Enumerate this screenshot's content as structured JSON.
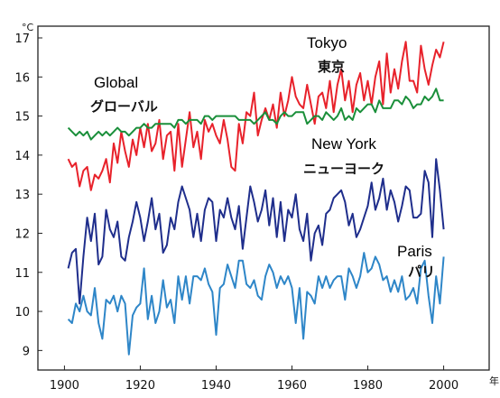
{
  "chart_data": {
    "type": "line",
    "ylabel": "°C",
    "xunit": "年",
    "xlim": [
      1893,
      2012
    ],
    "ylim": [
      8.5,
      17.3
    ],
    "xticks": [
      "1900",
      "1920",
      "1940",
      "1960",
      "1980",
      "2000"
    ],
    "yticks": [
      "9",
      "10",
      "11",
      "12",
      "13",
      "14",
      "15",
      "16",
      "17"
    ],
    "x": [
      1901,
      1902,
      1903,
      1904,
      1905,
      1906,
      1907,
      1908,
      1909,
      1910,
      1911,
      1912,
      1913,
      1914,
      1915,
      1916,
      1917,
      1918,
      1919,
      1920,
      1921,
      1922,
      1923,
      1924,
      1925,
      1926,
      1927,
      1928,
      1929,
      1930,
      1931,
      1932,
      1933,
      1934,
      1935,
      1936,
      1937,
      1938,
      1939,
      1940,
      1941,
      1942,
      1943,
      1944,
      1945,
      1946,
      1947,
      1948,
      1949,
      1950,
      1951,
      1952,
      1953,
      1954,
      1955,
      1956,
      1957,
      1958,
      1959,
      1960,
      1961,
      1962,
      1963,
      1964,
      1965,
      1966,
      1967,
      1968,
      1969,
      1970,
      1971,
      1972,
      1973,
      1974,
      1975,
      1976,
      1977,
      1978,
      1979,
      1980,
      1981,
      1982,
      1983,
      1984,
      1985,
      1986,
      1987,
      1988,
      1989,
      1990,
      1991,
      1992,
      1993,
      1994,
      1995,
      1996,
      1997,
      1998,
      1999,
      2000
    ],
    "series": [
      {
        "name": "Tokyo",
        "label_en": "Tokyo",
        "label_jp": "東京",
        "color": "#e8222b",
        "values": [
          13.9,
          13.7,
          13.8,
          13.2,
          13.6,
          13.7,
          13.1,
          13.5,
          13.4,
          13.6,
          13.9,
          13.3,
          14.3,
          13.8,
          14.6,
          14.1,
          13.7,
          14.4,
          14.0,
          14.7,
          14.2,
          14.8,
          14.1,
          14.3,
          14.9,
          13.9,
          14.5,
          14.6,
          13.6,
          14.8,
          13.7,
          14.4,
          15.1,
          14.2,
          14.6,
          13.9,
          14.9,
          14.6,
          14.8,
          14.5,
          14.3,
          14.9,
          14.4,
          13.7,
          13.6,
          14.8,
          14.3,
          15.1,
          15.0,
          15.6,
          14.5,
          14.9,
          15.2,
          14.9,
          15.3,
          14.7,
          15.6,
          15.0,
          15.4,
          16.0,
          15.5,
          15.3,
          15.2,
          15.8,
          15.3,
          14.8,
          15.5,
          15.6,
          15.2,
          15.9,
          15.1,
          15.8,
          16.2,
          15.4,
          15.9,
          15.1,
          15.8,
          16.1,
          15.4,
          15.9,
          15.3,
          16.0,
          16.4,
          15.3,
          16.6,
          15.6,
          16.2,
          15.7,
          16.4,
          16.9,
          15.9,
          15.9,
          15.6,
          16.8,
          16.2,
          15.8,
          16.3,
          16.7,
          16.5,
          16.9
        ]
      },
      {
        "name": "Global",
        "label_en": "Global",
        "label_jp": "グローバル",
        "color": "#1a8f3a",
        "values": [
          14.7,
          14.6,
          14.5,
          14.6,
          14.5,
          14.6,
          14.4,
          14.5,
          14.6,
          14.5,
          14.6,
          14.5,
          14.6,
          14.7,
          14.6,
          14.6,
          14.5,
          14.6,
          14.7,
          14.7,
          14.8,
          14.7,
          14.7,
          14.8,
          14.8,
          14.8,
          14.8,
          14.8,
          14.7,
          14.9,
          14.9,
          14.8,
          14.9,
          14.9,
          14.9,
          14.8,
          15.0,
          15.0,
          14.9,
          15.0,
          15.0,
          15.0,
          15.0,
          15.0,
          15.0,
          14.9,
          14.9,
          14.9,
          14.9,
          14.8,
          14.9,
          15.0,
          15.1,
          14.9,
          14.9,
          14.8,
          15.0,
          15.1,
          15.0,
          15.0,
          15.1,
          15.1,
          15.1,
          14.8,
          14.9,
          15.0,
          15.0,
          14.9,
          15.1,
          15.0,
          14.9,
          15.0,
          15.2,
          14.9,
          15.0,
          14.9,
          15.2,
          15.1,
          15.2,
          15.3,
          15.3,
          15.1,
          15.4,
          15.2,
          15.2,
          15.2,
          15.4,
          15.4,
          15.3,
          15.5,
          15.4,
          15.2,
          15.3,
          15.3,
          15.5,
          15.4,
          15.5,
          15.7,
          15.4,
          15.4
        ]
      },
      {
        "name": "New York",
        "label_en": "New York",
        "label_jp": "ニューヨーク",
        "color": "#1f2e8c",
        "values": [
          11.1,
          11.5,
          11.6,
          10.2,
          11.4,
          12.4,
          11.8,
          12.5,
          11.2,
          11.4,
          12.6,
          12.1,
          11.9,
          12.3,
          11.4,
          11.3,
          11.9,
          12.3,
          12.8,
          12.4,
          11.8,
          12.3,
          12.9,
          12.1,
          12.5,
          11.5,
          11.7,
          12.4,
          12.1,
          12.8,
          13.2,
          12.9,
          12.6,
          11.9,
          12.5,
          11.8,
          12.6,
          12.9,
          12.8,
          11.8,
          12.6,
          12.4,
          12.9,
          12.4,
          12.1,
          12.7,
          11.6,
          12.4,
          13.2,
          12.8,
          12.3,
          12.6,
          13.1,
          12.2,
          12.9,
          11.9,
          12.8,
          11.8,
          12.6,
          12.4,
          13.0,
          12.1,
          11.8,
          12.5,
          11.3,
          12.0,
          12.2,
          11.7,
          12.5,
          12.6,
          12.9,
          13.0,
          13.1,
          12.8,
          12.2,
          12.5,
          11.9,
          12.1,
          12.4,
          12.7,
          13.3,
          12.6,
          12.9,
          13.4,
          12.6,
          13.1,
          12.8,
          12.3,
          12.7,
          13.2,
          13.1,
          12.4,
          12.4,
          12.5,
          13.6,
          13.3,
          11.9,
          13.9,
          13.1,
          12.1
        ]
      },
      {
        "name": "Paris",
        "label_en": "Paris",
        "label_jp": "パリ",
        "color": "#2e86c8",
        "values": [
          9.8,
          9.7,
          10.2,
          10.0,
          10.4,
          10.0,
          9.9,
          10.6,
          9.7,
          9.3,
          10.3,
          10.2,
          10.4,
          10.0,
          10.4,
          10.2,
          8.9,
          9.9,
          10.1,
          10.2,
          11.1,
          9.8,
          10.4,
          9.7,
          10.0,
          10.8,
          10.1,
          10.3,
          9.7,
          10.9,
          10.3,
          10.9,
          10.2,
          10.9,
          10.9,
          10.8,
          11.1,
          10.7,
          10.5,
          9.4,
          10.6,
          10.7,
          11.2,
          10.9,
          10.6,
          11.3,
          11.3,
          10.7,
          10.6,
          10.8,
          10.4,
          10.3,
          10.9,
          11.2,
          11.0,
          10.6,
          10.9,
          10.7,
          10.9,
          10.6,
          9.7,
          10.6,
          9.3,
          10.5,
          10.4,
          10.2,
          10.9,
          10.6,
          10.9,
          10.6,
          10.8,
          10.9,
          10.9,
          10.3,
          11.1,
          10.9,
          10.6,
          10.9,
          11.5,
          11.0,
          11.1,
          11.4,
          11.2,
          10.8,
          10.9,
          10.5,
          10.8,
          10.5,
          10.9,
          10.3,
          10.4,
          10.6,
          10.2,
          11.1,
          11.3,
          10.4,
          9.7,
          10.9,
          10.2,
          11.4
        ]
      }
    ]
  }
}
